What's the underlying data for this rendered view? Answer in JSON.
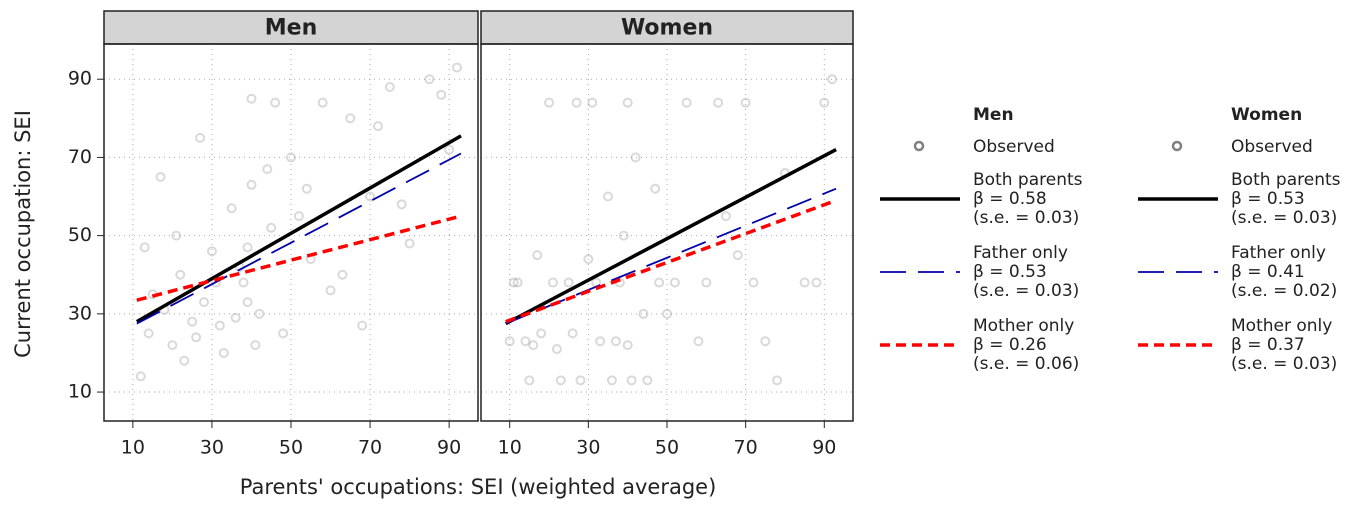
{
  "chart_data": [
    {
      "type": "scatter",
      "title": "Men",
      "xlabel": "Parents' occupations: SEI (weighted average)",
      "ylabel": "Current occupation: SEI",
      "xlim": [
        2.7,
        97.3
      ],
      "ylim": [
        2.6,
        99
      ],
      "xticks": [
        10,
        30,
        50,
        70,
        90
      ],
      "yticks": [
        10,
        30,
        50,
        70,
        90
      ],
      "grid": true,
      "scatter_name": "Observed",
      "scatter_color": "#808080",
      "points": {
        "x": [
          12,
          14,
          18,
          20,
          22,
          25,
          28,
          30,
          33,
          35,
          38,
          40,
          40,
          42,
          45,
          48,
          50,
          55,
          60,
          65,
          70,
          75,
          80,
          85,
          90,
          13,
          17,
          23,
          27,
          32,
          37,
          39,
          41,
          44,
          52,
          58,
          63,
          68,
          72,
          78,
          88,
          92,
          15,
          21,
          26,
          31,
          36,
          39,
          46,
          54
        ],
        "y": [
          14,
          25,
          31,
          22,
          40,
          28,
          33,
          46,
          20,
          57,
          38,
          85,
          63,
          30,
          52,
          25,
          70,
          44,
          36,
          80,
          60,
          88,
          48,
          90,
          72,
          47,
          65,
          18,
          75,
          27,
          42,
          33,
          22,
          67,
          55,
          84,
          40,
          27,
          78,
          58,
          86,
          93,
          35,
          50,
          24,
          38,
          29,
          47,
          84,
          62
        ]
      },
      "series": [
        {
          "name": "Both parents",
          "coef": "β = 0.58",
          "se": "(s.e. = 0.03)",
          "color": "#000000",
          "dash": "solid",
          "x": [
            11,
            93
          ],
          "values": [
            28,
            75.5
          ]
        },
        {
          "name": "Father only",
          "coef": "β = 0.53",
          "se": "(s.e. = 0.03)",
          "color": "#0000aa",
          "dash": "long",
          "x": [
            11,
            93
          ],
          "values": [
            27.5,
            71
          ]
        },
        {
          "name": "Mother only",
          "coef": "β = 0.26",
          "se": "(s.e. = 0.06)",
          "color": "#ff0000",
          "dash": "short",
          "x": [
            11,
            93
          ],
          "values": [
            33.5,
            55
          ]
        }
      ]
    },
    {
      "type": "scatter",
      "title": "Women",
      "xlim": [
        2.7,
        97.3
      ],
      "ylim": [
        2.6,
        99
      ],
      "xticks": [
        10,
        30,
        50,
        70,
        90
      ],
      "yticks": [
        10,
        30,
        50,
        70,
        90
      ],
      "grid": true,
      "scatter_name": "Observed",
      "scatter_color": "#808080",
      "points": {
        "x": [
          10,
          12,
          15,
          18,
          20,
          22,
          25,
          28,
          30,
          33,
          35,
          38,
          40,
          40,
          42,
          45,
          48,
          50,
          55,
          60,
          65,
          70,
          75,
          80,
          85,
          90,
          11,
          14,
          17,
          23,
          27,
          32,
          37,
          39,
          41,
          44,
          52,
          58,
          63,
          68,
          72,
          78,
          88,
          92,
          16,
          21,
          26,
          31,
          36,
          47
        ],
        "y": [
          23,
          38,
          13,
          25,
          84,
          21,
          38,
          13,
          44,
          23,
          60,
          38,
          84,
          22,
          70,
          13,
          38,
          30,
          84,
          38,
          55,
          84,
          23,
          66,
          38,
          84,
          38,
          23,
          45,
          13,
          84,
          38,
          23,
          50,
          13,
          30,
          38,
          23,
          84,
          45,
          38,
          13,
          38,
          90,
          22,
          38,
          25,
          84,
          13,
          62
        ]
      },
      "series": [
        {
          "name": "Both parents",
          "coef": "β = 0.53",
          "se": "(s.e. = 0.03)",
          "color": "#000000",
          "dash": "solid",
          "x": [
            9,
            93
          ],
          "values": [
            27.5,
            72
          ]
        },
        {
          "name": "Father only",
          "coef": "β = 0.41",
          "se": "(s.e. = 0.02)",
          "color": "#0000aa",
          "dash": "long",
          "x": [
            9,
            93
          ],
          "values": [
            27.5,
            62
          ]
        },
        {
          "name": "Mother only",
          "coef": "β = 0.37",
          "se": "(s.e. = 0.03)",
          "color": "#ff0000",
          "dash": "short",
          "x": [
            9,
            93
          ],
          "values": [
            28,
            59
          ]
        }
      ]
    }
  ]
}
